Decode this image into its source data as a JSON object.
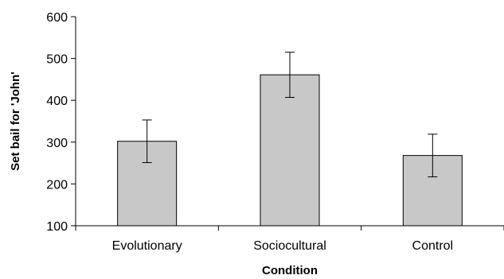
{
  "chart_data": {
    "type": "bar",
    "title": "",
    "xlabel": "Condition",
    "ylabel": "Set bail for 'John'",
    "categories": [
      "Evolutionary",
      "Sociocultural",
      "Control"
    ],
    "values": [
      302,
      461,
      268
    ],
    "error": [
      51,
      54,
      51
    ],
    "ylim": [
      100,
      600
    ],
    "yticks": [
      100,
      200,
      300,
      400,
      500,
      600
    ],
    "grid": false,
    "legend": "none",
    "colors": {
      "bar": "#c8c8c8",
      "outline": "#000000"
    }
  }
}
